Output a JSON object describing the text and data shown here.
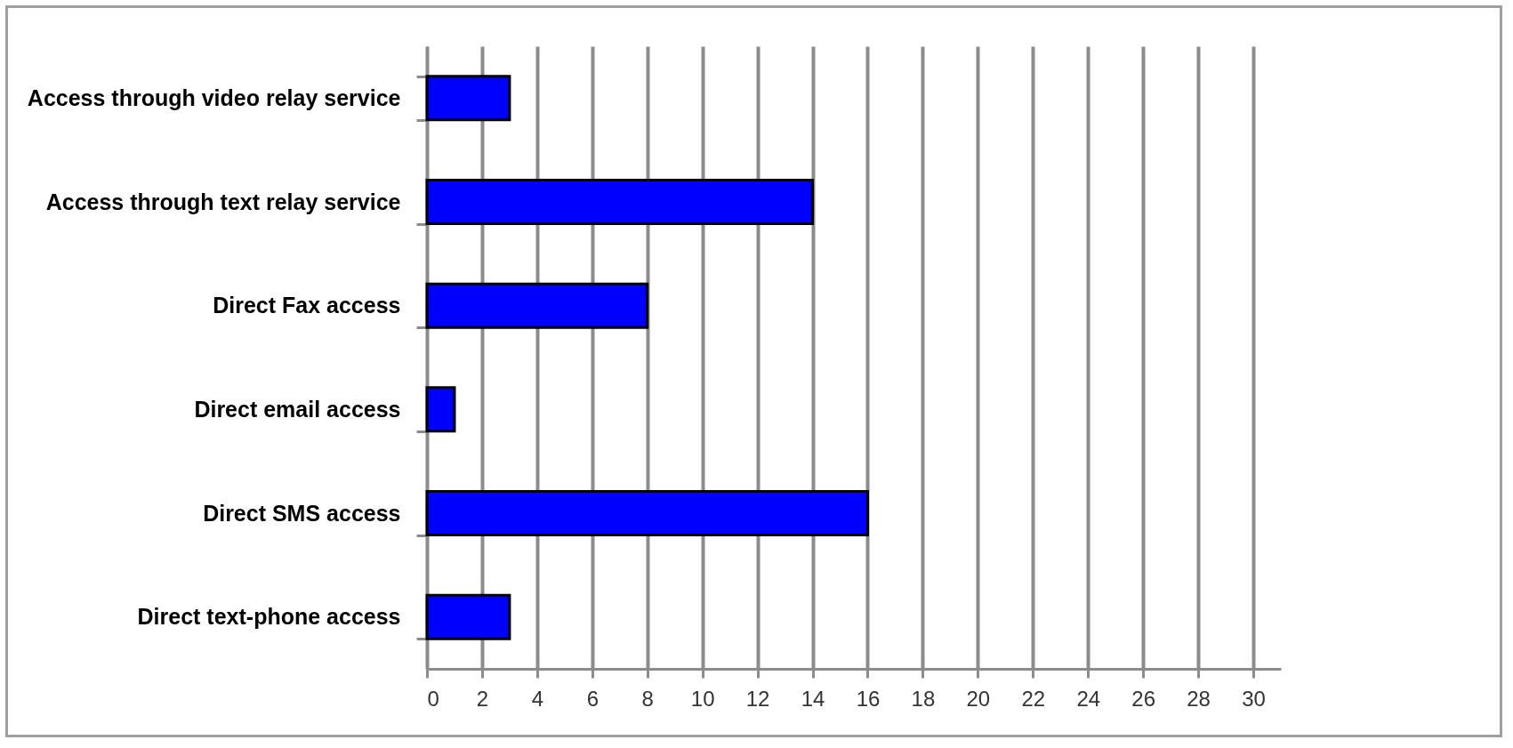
{
  "chart_data": {
    "type": "bar",
    "orientation": "horizontal",
    "categories": [
      "Access through video relay service",
      "Access through text relay service",
      "Direct Fax access",
      "Direct email access",
      "Direct SMS  access",
      "Direct text-phone access"
    ],
    "values": [
      3,
      14,
      8,
      1,
      16,
      3
    ],
    "color": "#0000ff",
    "xlim": [
      0,
      31
    ],
    "xticks": [
      0,
      2,
      4,
      6,
      8,
      10,
      12,
      14,
      16,
      18,
      20,
      22,
      24,
      26,
      28,
      30
    ],
    "grid": "x"
  }
}
